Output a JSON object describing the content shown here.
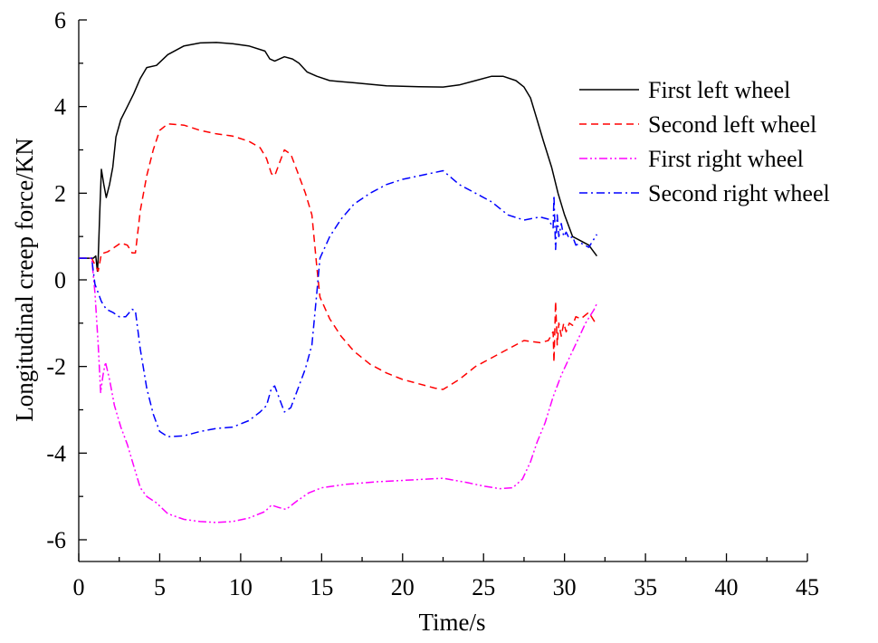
{
  "chart_data": {
    "type": "line",
    "title": "",
    "xlabel": "Time/s",
    "ylabel": "Longitudinal creep force/KN",
    "xlim": [
      0,
      45
    ],
    "ylim": [
      -6.5,
      6
    ],
    "x_ticks": [
      0,
      5,
      10,
      15,
      20,
      25,
      30,
      35,
      40,
      45
    ],
    "y_ticks": [
      6,
      4,
      2,
      0,
      -2,
      -4,
      -6
    ],
    "x_tick_labels": [
      "0",
      "5",
      "10",
      "15",
      "20",
      "25",
      "30",
      "35",
      "40",
      "45"
    ],
    "y_tick_labels": [
      "6",
      "4",
      "2",
      "0",
      "-2",
      "-4",
      "-6"
    ],
    "grid": false,
    "legend_position": "top-right",
    "series": [
      {
        "name": "First left wheel",
        "color": "#000000",
        "dash": "solid",
        "points": [
          [
            0,
            0.5
          ],
          [
            0.4,
            0.5
          ],
          [
            0.9,
            0.5
          ],
          [
            1.05,
            0.55
          ],
          [
            1.15,
            0.2
          ],
          [
            1.2,
            0.5
          ],
          [
            1.3,
            1.6
          ],
          [
            1.4,
            2.55
          ],
          [
            1.55,
            2.2
          ],
          [
            1.7,
            1.9
          ],
          [
            1.9,
            2.2
          ],
          [
            2.1,
            2.6
          ],
          [
            2.3,
            3.3
          ],
          [
            2.6,
            3.7
          ],
          [
            3.0,
            4.0
          ],
          [
            3.4,
            4.3
          ],
          [
            3.8,
            4.65
          ],
          [
            4.2,
            4.9
          ],
          [
            4.8,
            4.95
          ],
          [
            5.5,
            5.2
          ],
          [
            6.5,
            5.4
          ],
          [
            7.5,
            5.47
          ],
          [
            8.5,
            5.48
          ],
          [
            9.5,
            5.45
          ],
          [
            10.5,
            5.4
          ],
          [
            11.5,
            5.28
          ],
          [
            11.8,
            5.1
          ],
          [
            12.1,
            5.05
          ],
          [
            12.7,
            5.15
          ],
          [
            13.2,
            5.1
          ],
          [
            13.6,
            5.0
          ],
          [
            14.1,
            4.8
          ],
          [
            14.7,
            4.7
          ],
          [
            15.5,
            4.6
          ],
          [
            17,
            4.55
          ],
          [
            19,
            4.48
          ],
          [
            21,
            4.46
          ],
          [
            22.5,
            4.45
          ],
          [
            23.5,
            4.5
          ],
          [
            24.5,
            4.6
          ],
          [
            25.5,
            4.7
          ],
          [
            26.2,
            4.7
          ],
          [
            27.0,
            4.6
          ],
          [
            27.5,
            4.45
          ],
          [
            27.9,
            4.2
          ],
          [
            28.3,
            3.7
          ],
          [
            28.7,
            3.2
          ],
          [
            29.2,
            2.6
          ],
          [
            29.6,
            2.0
          ],
          [
            30.0,
            1.5
          ],
          [
            30.5,
            1.0
          ],
          [
            31.0,
            0.9
          ],
          [
            31.5,
            0.8
          ],
          [
            32.0,
            0.55
          ]
        ]
      },
      {
        "name": "Second left wheel",
        "color": "#ff0000",
        "dash": "dashed",
        "points": [
          [
            0,
            0.5
          ],
          [
            0.8,
            0.5
          ],
          [
            1.0,
            0.35
          ],
          [
            1.2,
            0.2
          ],
          [
            1.4,
            0.6
          ],
          [
            1.8,
            0.65
          ],
          [
            2.2,
            0.75
          ],
          [
            2.6,
            0.85
          ],
          [
            3.0,
            0.8
          ],
          [
            3.3,
            0.62
          ],
          [
            3.5,
            0.62
          ],
          [
            3.8,
            1.6
          ],
          [
            4.2,
            2.4
          ],
          [
            4.6,
            3.0
          ],
          [
            5.0,
            3.45
          ],
          [
            5.5,
            3.6
          ],
          [
            6.5,
            3.57
          ],
          [
            7.5,
            3.45
          ],
          [
            8.5,
            3.37
          ],
          [
            9.5,
            3.32
          ],
          [
            10.5,
            3.2
          ],
          [
            11.2,
            3.05
          ],
          [
            11.6,
            2.8
          ],
          [
            11.9,
            2.45
          ],
          [
            12.1,
            2.4
          ],
          [
            12.4,
            2.7
          ],
          [
            12.7,
            3.0
          ],
          [
            13.1,
            2.9
          ],
          [
            13.5,
            2.5
          ],
          [
            14.0,
            2.0
          ],
          [
            14.4,
            1.5
          ],
          [
            14.7,
            0.3
          ],
          [
            14.9,
            -0.4
          ],
          [
            15.5,
            -0.9
          ],
          [
            16.2,
            -1.3
          ],
          [
            17.0,
            -1.65
          ],
          [
            18.0,
            -1.95
          ],
          [
            19.0,
            -2.15
          ],
          [
            20.0,
            -2.3
          ],
          [
            21.0,
            -2.4
          ],
          [
            22.0,
            -2.5
          ],
          [
            22.5,
            -2.53
          ],
          [
            23.5,
            -2.3
          ],
          [
            24.5,
            -2.0
          ],
          [
            25.5,
            -1.8
          ],
          [
            26.5,
            -1.6
          ],
          [
            27.5,
            -1.4
          ],
          [
            28.5,
            -1.45
          ],
          [
            29.0,
            -1.4
          ],
          [
            29.3,
            -1.2
          ],
          [
            29.35,
            -1.9
          ],
          [
            29.45,
            -0.5
          ],
          [
            29.55,
            -1.5
          ],
          [
            29.65,
            -1.0
          ],
          [
            29.8,
            -1.3
          ],
          [
            29.95,
            -1.0
          ],
          [
            30.1,
            -1.2
          ],
          [
            30.3,
            -1.0
          ],
          [
            30.5,
            -1.05
          ],
          [
            30.7,
            -0.85
          ],
          [
            31.0,
            -0.9
          ],
          [
            31.5,
            -0.75
          ],
          [
            32.0,
            -1.05
          ]
        ]
      },
      {
        "name": "First right wheel",
        "color": "#ff00ff",
        "dash": "dashdotdot",
        "points": [
          [
            0,
            0.5
          ],
          [
            0.8,
            0.5
          ],
          [
            1.0,
            -0.3
          ],
          [
            1.2,
            -1.5
          ],
          [
            1.35,
            -2.6
          ],
          [
            1.5,
            -2.2
          ],
          [
            1.65,
            -1.9
          ],
          [
            1.9,
            -2.3
          ],
          [
            2.2,
            -2.9
          ],
          [
            2.6,
            -3.4
          ],
          [
            3.0,
            -3.8
          ],
          [
            3.4,
            -4.3
          ],
          [
            3.8,
            -4.8
          ],
          [
            4.2,
            -5.0
          ],
          [
            4.8,
            -5.15
          ],
          [
            5.5,
            -5.4
          ],
          [
            6.5,
            -5.53
          ],
          [
            7.5,
            -5.58
          ],
          [
            8.5,
            -5.6
          ],
          [
            9.5,
            -5.58
          ],
          [
            10.5,
            -5.5
          ],
          [
            11.5,
            -5.35
          ],
          [
            11.9,
            -5.2
          ],
          [
            12.3,
            -5.25
          ],
          [
            12.8,
            -5.3
          ],
          [
            13.5,
            -5.1
          ],
          [
            14.2,
            -4.92
          ],
          [
            15.0,
            -4.8
          ],
          [
            16.5,
            -4.72
          ],
          [
            18.5,
            -4.66
          ],
          [
            20.5,
            -4.62
          ],
          [
            22.5,
            -4.58
          ],
          [
            24.0,
            -4.68
          ],
          [
            25.0,
            -4.76
          ],
          [
            26.0,
            -4.82
          ],
          [
            26.8,
            -4.8
          ],
          [
            27.4,
            -4.6
          ],
          [
            27.9,
            -4.2
          ],
          [
            28.3,
            -3.75
          ],
          [
            28.8,
            -3.3
          ],
          [
            29.3,
            -2.7
          ],
          [
            29.8,
            -2.2
          ],
          [
            30.3,
            -1.8
          ],
          [
            30.8,
            -1.4
          ],
          [
            31.3,
            -1.0
          ],
          [
            31.8,
            -0.7
          ],
          [
            32.0,
            -0.55
          ]
        ]
      },
      {
        "name": "Second right wheel",
        "color": "#0000ff",
        "dash": "dashdot",
        "points": [
          [
            0,
            0.5
          ],
          [
            0.8,
            0.5
          ],
          [
            1.0,
            -0.1
          ],
          [
            1.2,
            -0.3
          ],
          [
            1.4,
            -0.5
          ],
          [
            1.7,
            -0.68
          ],
          [
            2.1,
            -0.75
          ],
          [
            2.5,
            -0.85
          ],
          [
            2.9,
            -0.85
          ],
          [
            3.3,
            -0.68
          ],
          [
            3.5,
            -0.72
          ],
          [
            3.8,
            -1.6
          ],
          [
            4.2,
            -2.5
          ],
          [
            4.6,
            -3.1
          ],
          [
            5.0,
            -3.5
          ],
          [
            5.5,
            -3.62
          ],
          [
            6.5,
            -3.6
          ],
          [
            7.5,
            -3.5
          ],
          [
            8.5,
            -3.43
          ],
          [
            9.5,
            -3.4
          ],
          [
            10.5,
            -3.25
          ],
          [
            11.2,
            -3.05
          ],
          [
            11.6,
            -2.9
          ],
          [
            11.9,
            -2.5
          ],
          [
            12.1,
            -2.45
          ],
          [
            12.4,
            -2.75
          ],
          [
            12.7,
            -3.05
          ],
          [
            13.1,
            -2.95
          ],
          [
            13.5,
            -2.55
          ],
          [
            14.0,
            -2.05
          ],
          [
            14.4,
            -1.5
          ],
          [
            14.7,
            -0.3
          ],
          [
            14.9,
            0.5
          ],
          [
            15.5,
            1.0
          ],
          [
            16.2,
            1.4
          ],
          [
            17.0,
            1.75
          ],
          [
            18.0,
            2.0
          ],
          [
            19.0,
            2.2
          ],
          [
            20.0,
            2.32
          ],
          [
            21.0,
            2.4
          ],
          [
            22.0,
            2.48
          ],
          [
            22.5,
            2.52
          ],
          [
            23.5,
            2.2
          ],
          [
            24.5,
            2.0
          ],
          [
            25.5,
            1.8
          ],
          [
            26.5,
            1.5
          ],
          [
            27.5,
            1.38
          ],
          [
            28.5,
            1.45
          ],
          [
            29.0,
            1.4
          ],
          [
            29.3,
            1.2
          ],
          [
            29.35,
            1.95
          ],
          [
            29.45,
            0.7
          ],
          [
            29.55,
            1.5
          ],
          [
            29.65,
            1.0
          ],
          [
            29.8,
            1.3
          ],
          [
            29.95,
            1.0
          ],
          [
            30.1,
            1.1
          ],
          [
            30.3,
            0.95
          ],
          [
            30.5,
            1.0
          ],
          [
            30.7,
            0.8
          ],
          [
            31.0,
            0.85
          ],
          [
            31.5,
            0.75
          ],
          [
            32.0,
            1.05
          ]
        ]
      }
    ]
  }
}
